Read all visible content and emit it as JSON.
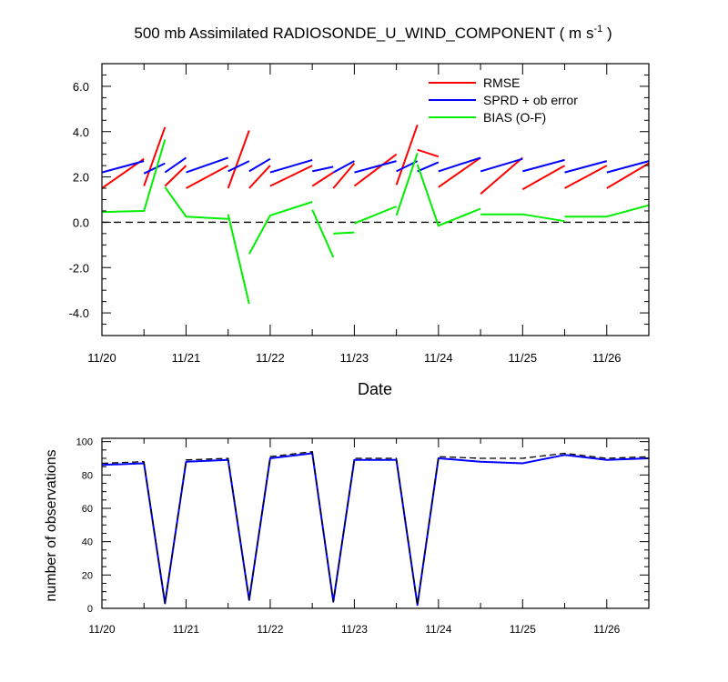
{
  "figure": {
    "title": "500 mb Assimilated RADIOSONDE_U_WIND_COMPONENT ( m s",
    "title_sup": "-1",
    "title_close": " )"
  },
  "chart_data": [
    {
      "type": "line",
      "x_labels": [
        "11/20",
        "11/21",
        "11/22",
        "11/23",
        "11/24",
        "11/25",
        "11/26"
      ],
      "xlim": [
        0,
        6.5
      ],
      "ylim": [
        -5,
        7
      ],
      "yticks": [
        -4.0,
        -2.0,
        0.0,
        2.0,
        4.0,
        6.0
      ],
      "xlabel": "Date",
      "ylabel": "",
      "zero_line": "dashed",
      "legend_position": "top-right",
      "series": [
        {
          "name": "RMSE",
          "color": "#ff0000",
          "segments": [
            [
              [
                0,
                1.5
              ],
              [
                0.5,
                2.8
              ]
            ],
            [
              [
                0.5,
                1.6
              ],
              [
                0.75,
                4.2
              ]
            ],
            [
              [
                0.75,
                1.6
              ],
              [
                1.0,
                2.5
              ]
            ],
            [
              [
                1.0,
                1.5
              ],
              [
                1.5,
                2.5
              ]
            ],
            [
              [
                1.5,
                1.5
              ],
              [
                1.75,
                4.05
              ]
            ],
            [
              [
                1.75,
                1.5
              ],
              [
                2.0,
                2.5
              ]
            ],
            [
              [
                2.0,
                1.6
              ],
              [
                2.5,
                2.5
              ]
            ],
            [
              [
                2.5,
                1.6
              ],
              [
                2.75,
                2.2
              ]
            ],
            [
              [
                2.75,
                1.5
              ],
              [
                3.0,
                2.6
              ]
            ],
            [
              [
                3.0,
                1.6
              ],
              [
                3.5,
                3.0
              ]
            ],
            [
              [
                3.5,
                1.65
              ],
              [
                3.75,
                4.3
              ]
            ],
            [
              [
                3.75,
                3.2
              ],
              [
                4.0,
                2.9
              ]
            ],
            [
              [
                4.0,
                1.55
              ],
              [
                4.5,
                2.85
              ]
            ],
            [
              [
                4.5,
                1.25
              ],
              [
                5.0,
                2.85
              ]
            ],
            [
              [
                5.0,
                1.45
              ],
              [
                5.5,
                2.5
              ]
            ],
            [
              [
                5.5,
                1.5
              ],
              [
                6.0,
                2.5
              ]
            ],
            [
              [
                6.0,
                1.5
              ],
              [
                6.5,
                2.6
              ]
            ]
          ]
        },
        {
          "name": "SPRD + ob error",
          "color": "#0000ff",
          "segments": [
            [
              [
                0,
                2.2
              ],
              [
                0.5,
                2.7
              ]
            ],
            [
              [
                0.5,
                2.15
              ],
              [
                0.75,
                2.6
              ]
            ],
            [
              [
                0.75,
                2.2
              ],
              [
                1.0,
                2.85
              ]
            ],
            [
              [
                1.0,
                2.2
              ],
              [
                1.5,
                2.85
              ]
            ],
            [
              [
                1.5,
                2.25
              ],
              [
                1.75,
                2.7
              ]
            ],
            [
              [
                1.75,
                2.25
              ],
              [
                2.0,
                2.8
              ]
            ],
            [
              [
                2.0,
                2.2
              ],
              [
                2.5,
                2.75
              ]
            ],
            [
              [
                2.5,
                2.25
              ],
              [
                2.75,
                2.45
              ]
            ],
            [
              [
                2.75,
                2.2
              ],
              [
                3.0,
                2.7
              ]
            ],
            [
              [
                3.0,
                2.2
              ],
              [
                3.5,
                2.7
              ]
            ],
            [
              [
                3.5,
                2.25
              ],
              [
                3.75,
                2.7
              ]
            ],
            [
              [
                3.75,
                2.25
              ],
              [
                4.0,
                2.65
              ]
            ],
            [
              [
                4.0,
                2.25
              ],
              [
                4.5,
                2.85
              ]
            ],
            [
              [
                4.5,
                2.25
              ],
              [
                5.0,
                2.8
              ]
            ],
            [
              [
                5.0,
                2.25
              ],
              [
                5.5,
                2.75
              ]
            ],
            [
              [
                5.5,
                2.2
              ],
              [
                6.0,
                2.7
              ]
            ],
            [
              [
                6.0,
                2.2
              ],
              [
                6.5,
                2.7
              ]
            ]
          ]
        },
        {
          "name": "BIAS (O-F)",
          "color": "#00ee00",
          "segments": [
            [
              [
                0,
                0.45
              ],
              [
                0.5,
                0.5
              ],
              [
                0.75,
                3.65
              ]
            ],
            [
              [
                0.75,
                1.55
              ],
              [
                1.0,
                0.25
              ],
              [
                1.5,
                0.15
              ]
            ],
            [
              [
                1.5,
                0.35
              ],
              [
                1.75,
                -3.6
              ]
            ],
            [
              [
                1.75,
                -1.4
              ],
              [
                2.0,
                0.3
              ],
              [
                2.5,
                0.9
              ]
            ],
            [
              [
                2.5,
                0.55
              ],
              [
                2.75,
                -1.55
              ]
            ],
            [
              [
                2.75,
                -0.5
              ],
              [
                3.0,
                -0.45
              ]
            ],
            [
              [
                3.0,
                -0.05
              ],
              [
                3.5,
                0.7
              ]
            ],
            [
              [
                3.5,
                0.3
              ],
              [
                3.75,
                3.05
              ]
            ],
            [
              [
                3.75,
                2.55
              ],
              [
                4.0,
                -0.15
              ],
              [
                4.5,
                0.6
              ]
            ],
            [
              [
                4.5,
                0.35
              ],
              [
                5.0,
                0.35
              ],
              [
                5.5,
                0.05
              ]
            ],
            [
              [
                5.5,
                0.25
              ],
              [
                6.0,
                0.25
              ],
              [
                6.5,
                0.75
              ]
            ]
          ]
        }
      ]
    },
    {
      "type": "line",
      "x_labels": [
        "11/20",
        "11/21",
        "11/22",
        "11/23",
        "11/24",
        "11/25",
        "11/26"
      ],
      "xlim": [
        0,
        6.5
      ],
      "ylim": [
        0,
        102
      ],
      "yticks": [
        0,
        20,
        40,
        60,
        80,
        100
      ],
      "xlabel": "",
      "ylabel": "number of observations",
      "series": [
        {
          "name": "",
          "color": "#0000ff",
          "style": "solid",
          "x": [
            0,
            0.5,
            0.75,
            1.0,
            1.5,
            1.75,
            2.0,
            2.5,
            2.75,
            3.0,
            3.5,
            3.75,
            4.0,
            4.5,
            5.0,
            5.5,
            6.0,
            6.5
          ],
          "y": [
            86,
            87,
            3,
            88,
            89,
            5,
            90,
            93,
            4,
            89,
            89,
            2,
            90,
            88,
            87,
            92,
            89,
            90
          ]
        },
        {
          "name": "",
          "color": "#000000",
          "style": "dashed",
          "x": [
            0,
            0.5,
            0.75,
            1.0,
            1.5,
            1.75,
            2.0,
            2.5,
            2.75,
            3.0,
            3.5,
            3.75,
            4.0,
            4.5,
            5.0,
            5.5,
            6.0,
            6.5
          ],
          "y": [
            87,
            88,
            3,
            89,
            90,
            5,
            91,
            94,
            4,
            90,
            90,
            2,
            91,
            90,
            90,
            93,
            90,
            91
          ]
        }
      ]
    }
  ]
}
